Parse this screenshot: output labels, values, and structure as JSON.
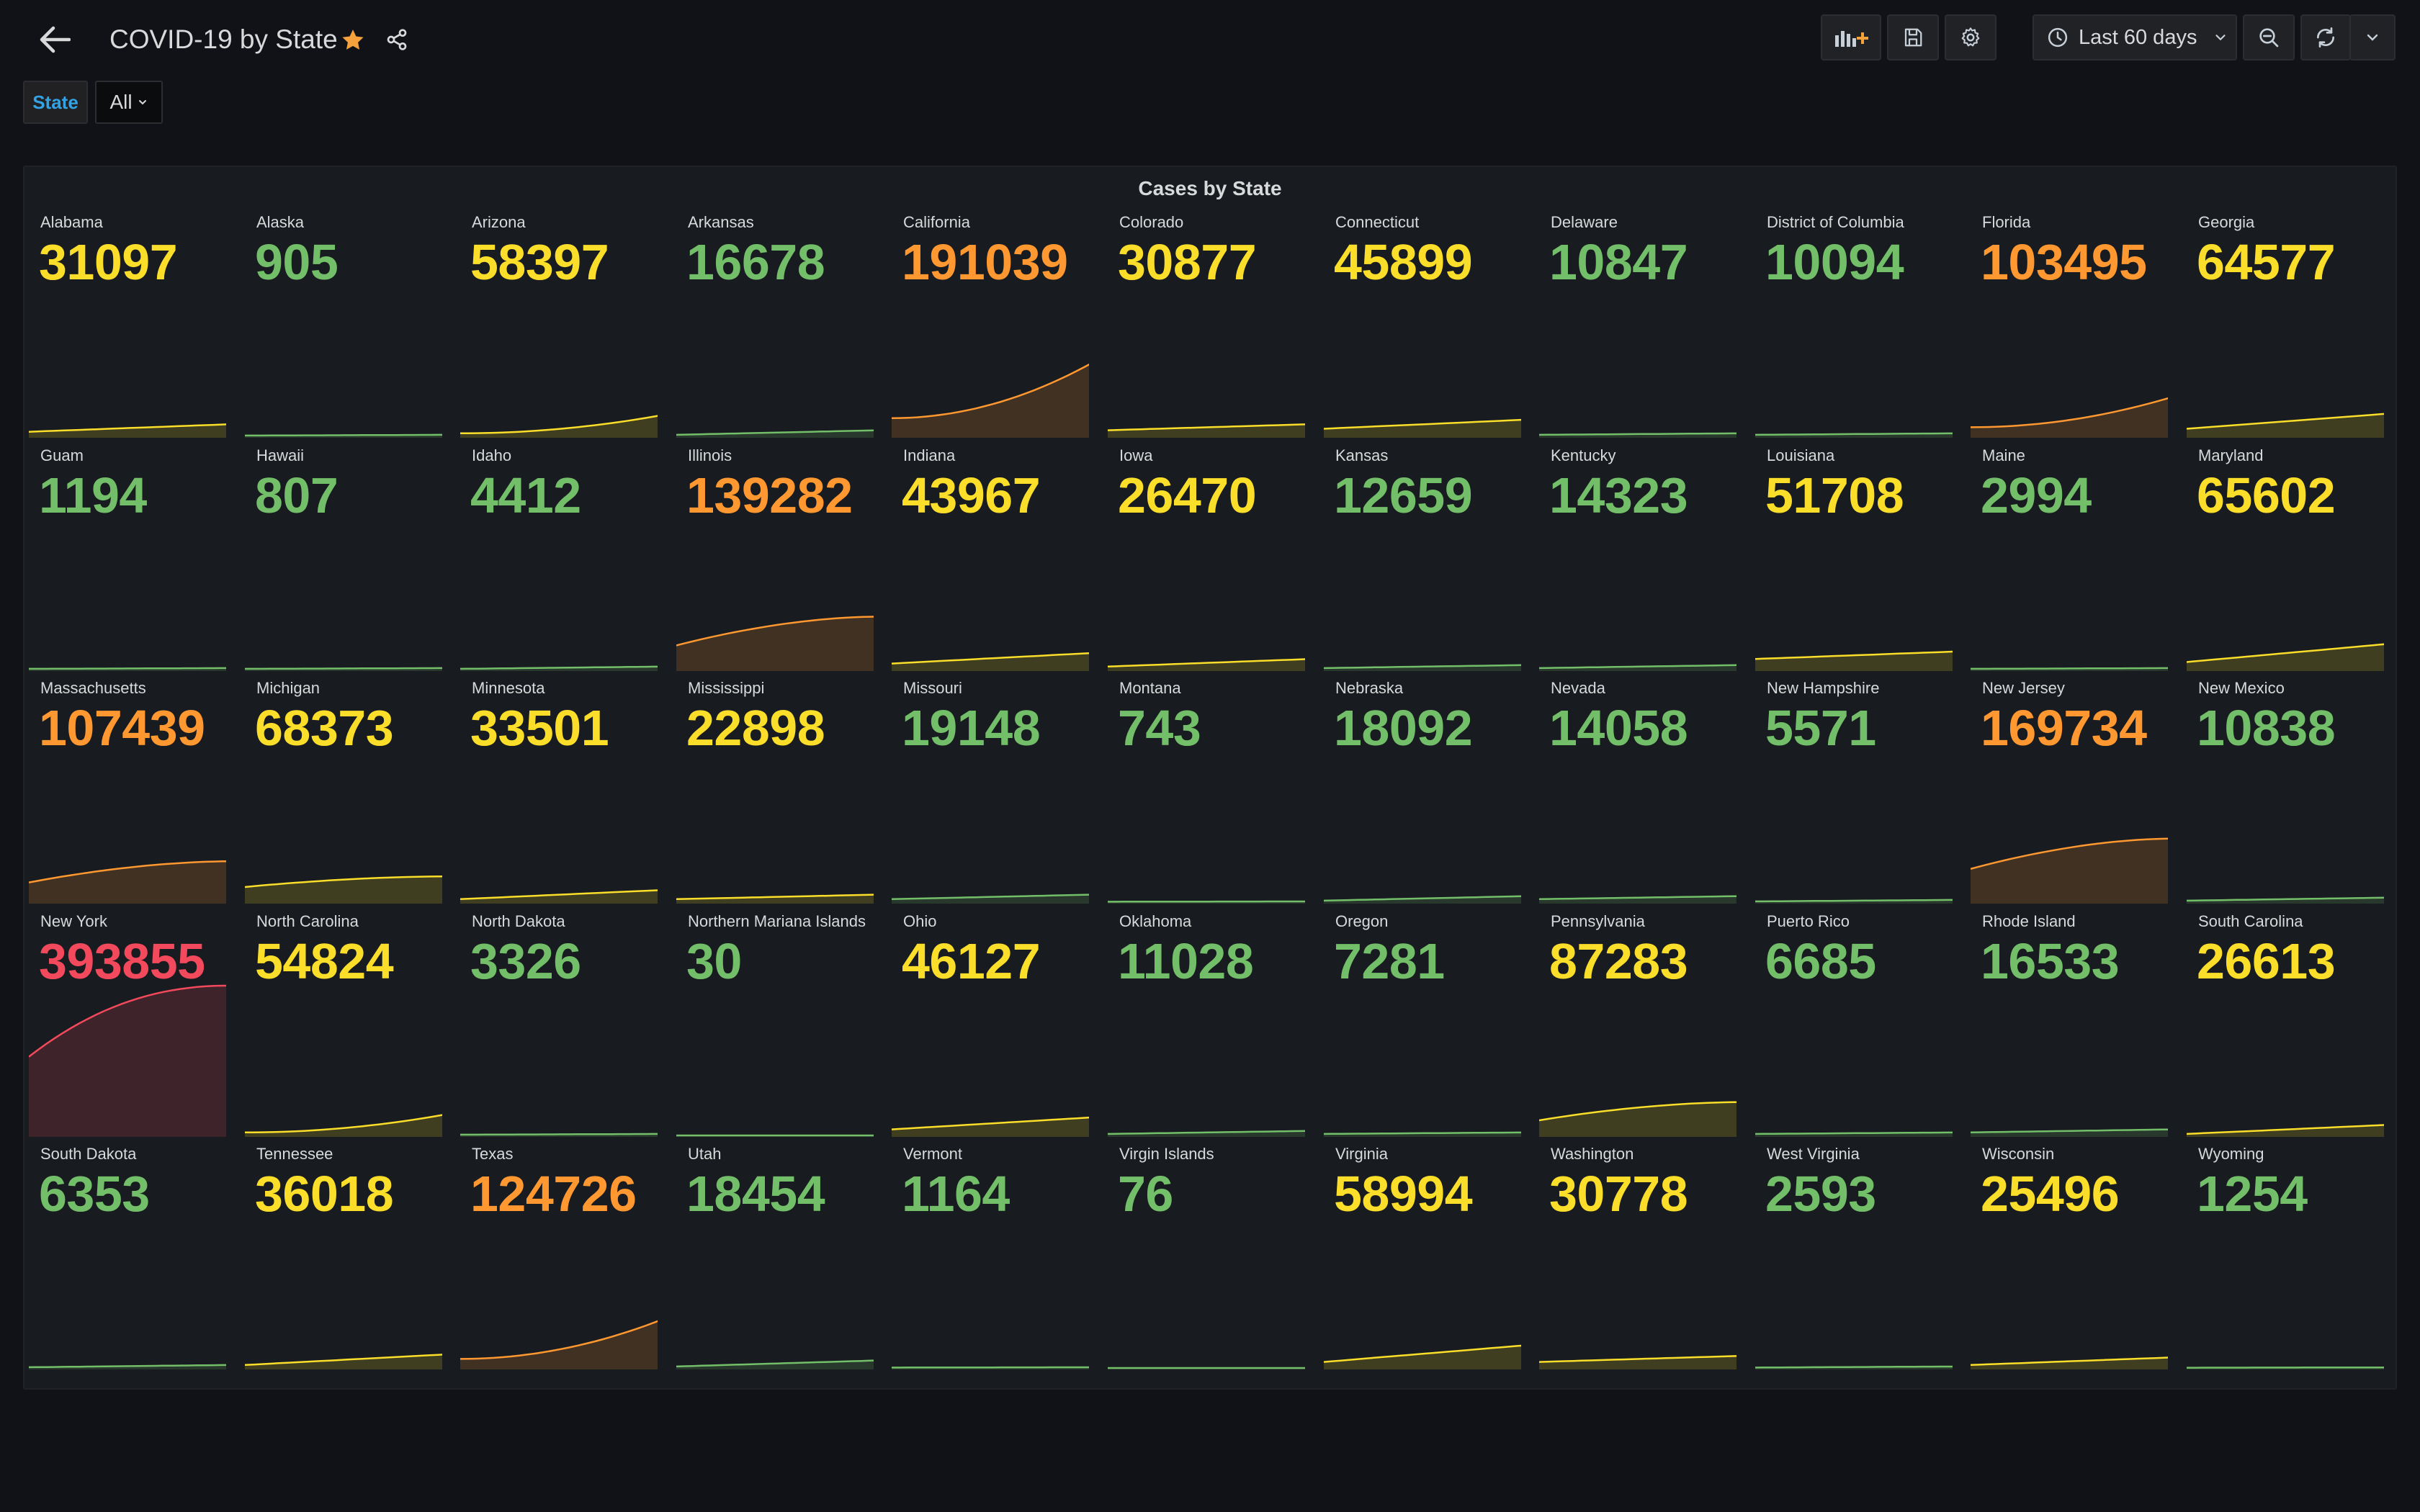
{
  "header": {
    "title": "COVID-19 by State",
    "time_range": "Last 60 days"
  },
  "variables": {
    "label": "State",
    "value": "All"
  },
  "panel": {
    "title": "Cases by State"
  },
  "colors": {
    "green": "#73bf69",
    "yellow": "#fade2a",
    "orange": "#ff9830",
    "red": "#f2495c",
    "accent_blue": "#33a2e5",
    "star": "#f5a13c"
  },
  "states": [
    {
      "name": "Alabama",
      "value": "31097",
      "color": "yellow",
      "trend": [
        0.03,
        0.08
      ]
    },
    {
      "name": "Alaska",
      "value": "905",
      "color": "green",
      "trend": [
        0.005,
        0.01
      ]
    },
    {
      "name": "Arizona",
      "value": "58397",
      "color": "yellow",
      "trend": [
        0.02,
        0.14
      ]
    },
    {
      "name": "Arkansas",
      "value": "16678",
      "color": "green",
      "trend": [
        0.01,
        0.04
      ]
    },
    {
      "name": "California",
      "value": "191039",
      "color": "orange",
      "trend": [
        0.12,
        0.49
      ]
    },
    {
      "name": "Colorado",
      "value": "30877",
      "color": "yellow",
      "trend": [
        0.04,
        0.08
      ]
    },
    {
      "name": "Connecticut",
      "value": "45899",
      "color": "yellow",
      "trend": [
        0.05,
        0.11
      ]
    },
    {
      "name": "Delaware",
      "value": "10847",
      "color": "green",
      "trend": [
        0.01,
        0.02
      ]
    },
    {
      "name": "District of Columbia",
      "value": "10094",
      "color": "green",
      "trend": [
        0.01,
        0.02
      ]
    },
    {
      "name": "Florida",
      "value": "103495",
      "color": "orange",
      "trend": [
        0.06,
        0.26
      ]
    },
    {
      "name": "Georgia",
      "value": "64577",
      "color": "yellow",
      "trend": [
        0.05,
        0.15
      ]
    },
    {
      "name": "Guam",
      "value": "1194",
      "color": "green",
      "trend": [
        0.005,
        0.01
      ]
    },
    {
      "name": "Hawaii",
      "value": "807",
      "color": "green",
      "trend": [
        0.005,
        0.01
      ]
    },
    {
      "name": "Idaho",
      "value": "4412",
      "color": "green",
      "trend": [
        0.005,
        0.02
      ]
    },
    {
      "name": "Illinois",
      "value": "139282",
      "color": "orange",
      "trend": [
        0.16,
        0.35
      ]
    },
    {
      "name": "Indiana",
      "value": "43967",
      "color": "yellow",
      "trend": [
        0.04,
        0.11
      ]
    },
    {
      "name": "Iowa",
      "value": "26470",
      "color": "yellow",
      "trend": [
        0.02,
        0.07
      ]
    },
    {
      "name": "Kansas",
      "value": "12659",
      "color": "green",
      "trend": [
        0.01,
        0.03
      ]
    },
    {
      "name": "Kentucky",
      "value": "14323",
      "color": "green",
      "trend": [
        0.01,
        0.03
      ]
    },
    {
      "name": "Louisiana",
      "value": "51708",
      "color": "yellow",
      "trend": [
        0.07,
        0.12
      ]
    },
    {
      "name": "Maine",
      "value": "2994",
      "color": "green",
      "trend": [
        0.005,
        0.01
      ]
    },
    {
      "name": "Maryland",
      "value": "65602",
      "color": "yellow",
      "trend": [
        0.05,
        0.17
      ]
    },
    {
      "name": "Massachusetts",
      "value": "107439",
      "color": "orange",
      "trend": [
        0.13,
        0.27
      ]
    },
    {
      "name": "Michigan",
      "value": "68373",
      "color": "yellow",
      "trend": [
        0.1,
        0.17
      ]
    },
    {
      "name": "Minnesota",
      "value": "33501",
      "color": "yellow",
      "trend": [
        0.02,
        0.08
      ]
    },
    {
      "name": "Mississippi",
      "value": "22898",
      "color": "yellow",
      "trend": [
        0.02,
        0.05
      ]
    },
    {
      "name": "Missouri",
      "value": "19148",
      "color": "green",
      "trend": [
        0.02,
        0.05
      ]
    },
    {
      "name": "Montana",
      "value": "743",
      "color": "green",
      "trend": [
        0.003,
        0.005
      ]
    },
    {
      "name": "Nebraska",
      "value": "18092",
      "color": "green",
      "trend": [
        0.01,
        0.04
      ]
    },
    {
      "name": "Nevada",
      "value": "14058",
      "color": "green",
      "trend": [
        0.02,
        0.04
      ]
    },
    {
      "name": "New Hampshire",
      "value": "5571",
      "color": "green",
      "trend": [
        0.005,
        0.015
      ]
    },
    {
      "name": "New Jersey",
      "value": "169734",
      "color": "orange",
      "trend": [
        0.22,
        0.42
      ]
    },
    {
      "name": "New Mexico",
      "value": "10838",
      "color": "green",
      "trend": [
        0.01,
        0.03
      ]
    },
    {
      "name": "New York",
      "value": "393855",
      "color": "red",
      "trend": [
        0.52,
        0.99
      ]
    },
    {
      "name": "North Carolina",
      "value": "54824",
      "color": "yellow",
      "trend": [
        0.02,
        0.14
      ]
    },
    {
      "name": "North Dakota",
      "value": "3326",
      "color": "green",
      "trend": [
        0.005,
        0.01
      ]
    },
    {
      "name": "Northern Mariana Islands",
      "value": "30",
      "color": "green",
      "trend": [
        0.0,
        0.0
      ]
    },
    {
      "name": "Ohio",
      "value": "46127",
      "color": "yellow",
      "trend": [
        0.04,
        0.12
      ]
    },
    {
      "name": "Oklahoma",
      "value": "11028",
      "color": "green",
      "trend": [
        0.01,
        0.03
      ]
    },
    {
      "name": "Oregon",
      "value": "7281",
      "color": "green",
      "trend": [
        0.01,
        0.02
      ]
    },
    {
      "name": "Pennsylvania",
      "value": "87283",
      "color": "yellow",
      "trend": [
        0.1,
        0.22
      ]
    },
    {
      "name": "Puerto Rico",
      "value": "6685",
      "color": "green",
      "trend": [
        0.01,
        0.02
      ]
    },
    {
      "name": "Rhode Island",
      "value": "16533",
      "color": "green",
      "trend": [
        0.02,
        0.04
      ]
    },
    {
      "name": "South Carolina",
      "value": "26613",
      "color": "yellow",
      "trend": [
        0.01,
        0.07
      ]
    },
    {
      "name": "South Dakota",
      "value": "6353",
      "color": "green",
      "trend": [
        0.005,
        0.02
      ]
    },
    {
      "name": "Tennessee",
      "value": "36018",
      "color": "yellow",
      "trend": [
        0.02,
        0.09
      ]
    },
    {
      "name": "Texas",
      "value": "124726",
      "color": "orange",
      "trend": [
        0.06,
        0.32
      ]
    },
    {
      "name": "Utah",
      "value": "18454",
      "color": "green",
      "trend": [
        0.01,
        0.05
      ]
    },
    {
      "name": "Vermont",
      "value": "1164",
      "color": "green",
      "trend": [
        0.003,
        0.005
      ]
    },
    {
      "name": "Virgin Islands",
      "value": "76",
      "color": "green",
      "trend": [
        0.0,
        0.0
      ]
    },
    {
      "name": "Virginia",
      "value": "58994",
      "color": "yellow",
      "trend": [
        0.04,
        0.15
      ]
    },
    {
      "name": "Washington",
      "value": "30778",
      "color": "yellow",
      "trend": [
        0.04,
        0.08
      ]
    },
    {
      "name": "West Virginia",
      "value": "2593",
      "color": "green",
      "trend": [
        0.003,
        0.01
      ]
    },
    {
      "name": "Wisconsin",
      "value": "25496",
      "color": "yellow",
      "trend": [
        0.02,
        0.07
      ]
    },
    {
      "name": "Wyoming",
      "value": "1254",
      "color": "green",
      "trend": [
        0.002,
        0.004
      ]
    }
  ]
}
